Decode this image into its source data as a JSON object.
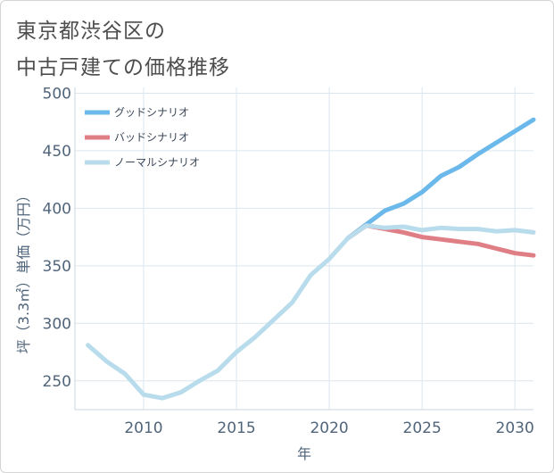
{
  "title": [
    "東京都渋谷区の",
    "中古戸建ての価格推移"
  ],
  "chart_data": {
    "type": "line",
    "xlabel": "年",
    "ylabel": "坪（3.3㎡）単価（万円）",
    "xlim": [
      2006.3,
      2031
    ],
    "ylim": [
      225,
      505
    ],
    "xticks": [
      2010,
      2015,
      2020,
      2025,
      2030
    ],
    "yticks": [
      250,
      300,
      350,
      400,
      450,
      500
    ],
    "grid": true,
    "legend_position": "top-left",
    "series": [
      {
        "name": "グッドシナリオ",
        "color": "#6bb8ea",
        "x": [
          2021,
          2022,
          2023,
          2024,
          2025,
          2026,
          2027,
          2028,
          2029,
          2030,
          2031
        ],
        "y": [
          374,
          386,
          398,
          404,
          414,
          428,
          436,
          447,
          457,
          467,
          477
        ]
      },
      {
        "name": "バッドシナリオ",
        "color": "#e07e86",
        "x": [
          2021,
          2022,
          2023,
          2024,
          2025,
          2026,
          2027,
          2028,
          2029,
          2030,
          2031
        ],
        "y": [
          374,
          385,
          382,
          379,
          375,
          373,
          371,
          369,
          365,
          361,
          359
        ]
      },
      {
        "name": "ノーマルシナリオ",
        "color": "#b8dcec",
        "x": [
          2007,
          2008,
          2009,
          2010,
          2011,
          2012,
          2013,
          2014,
          2015,
          2016,
          2017,
          2018,
          2019,
          2020,
          2021,
          2022,
          2023,
          2024,
          2025,
          2026,
          2027,
          2028,
          2029,
          2030,
          2031
        ],
        "y": [
          281,
          267,
          256,
          238,
          235,
          240,
          250,
          259,
          275,
          288,
          303,
          318,
          342,
          356,
          374,
          385,
          383,
          384,
          381,
          383,
          382,
          382,
          380,
          381,
          379
        ]
      }
    ]
  }
}
